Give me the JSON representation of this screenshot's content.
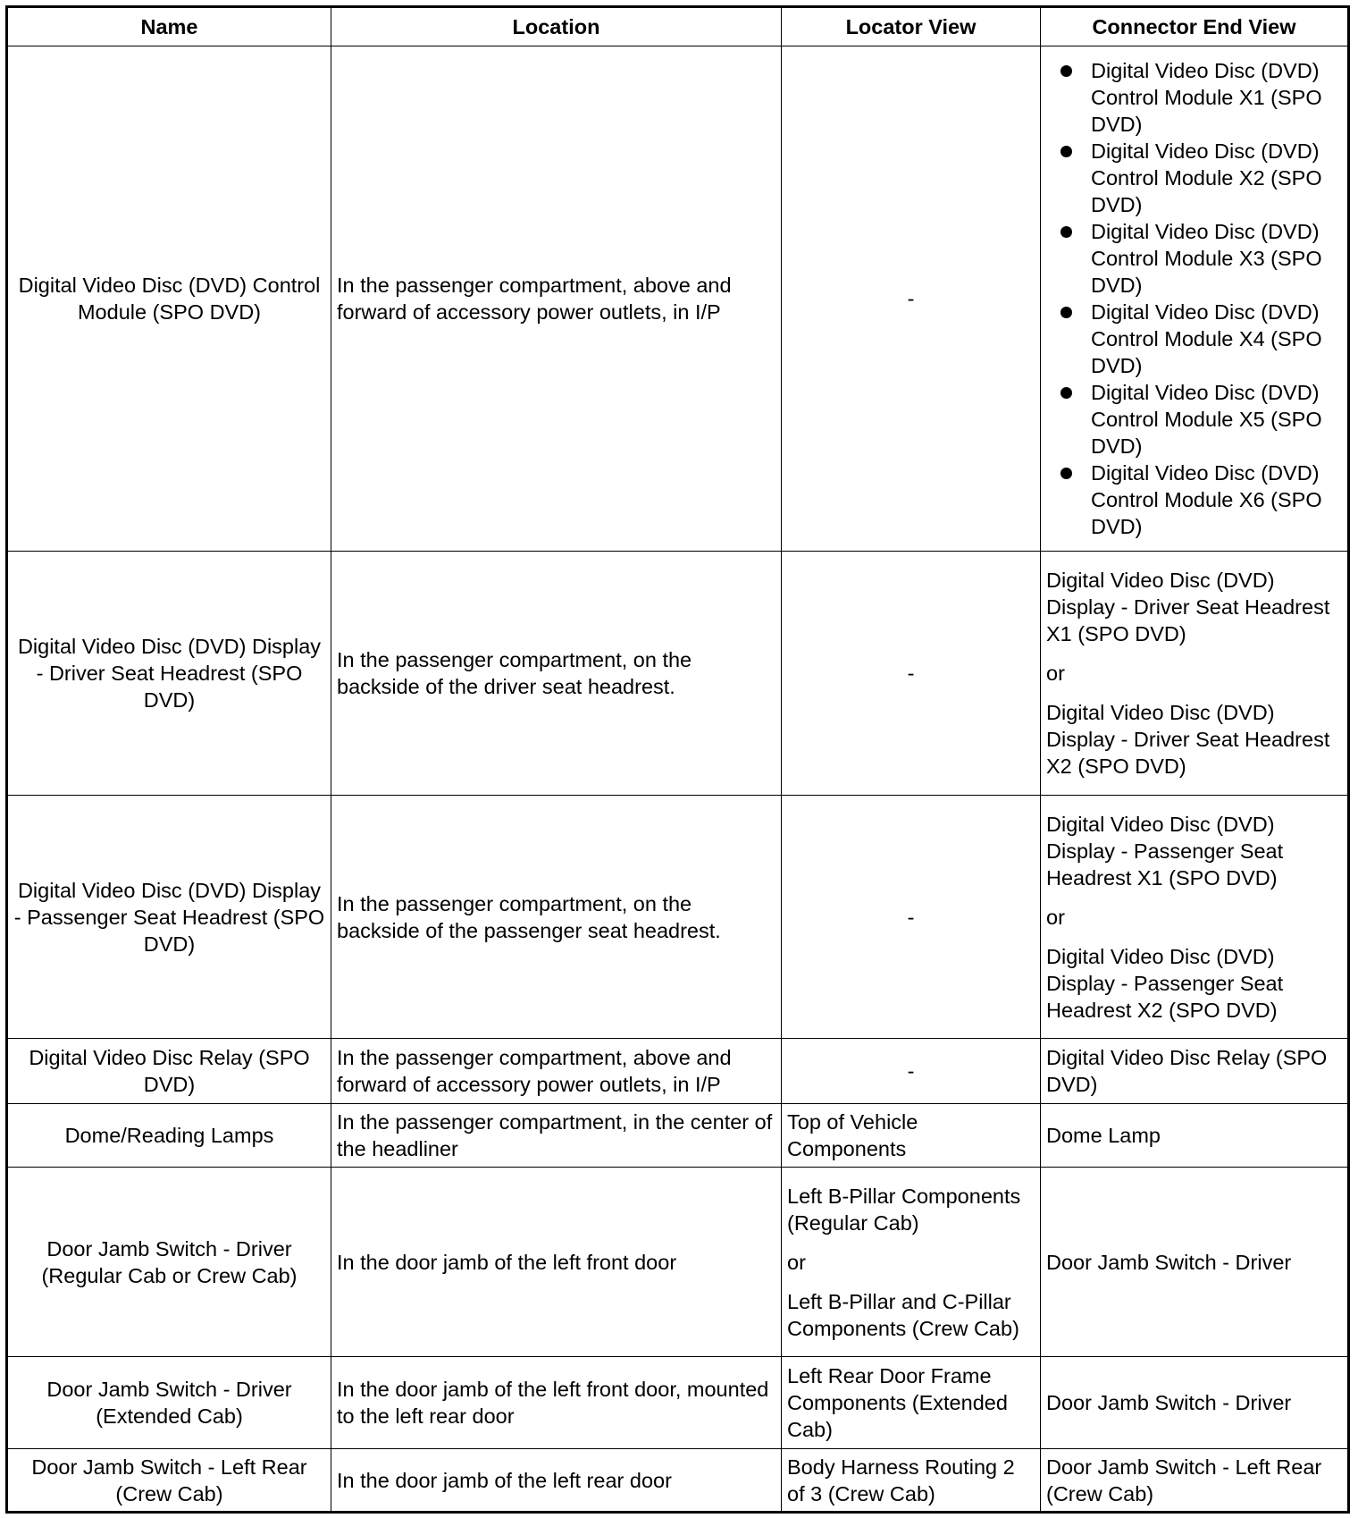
{
  "headers": [
    "Name",
    "Location",
    "Locator View",
    "Connector End View"
  ],
  "rows": [
    {
      "name": "Digital Video Disc (DVD) Control Module (SPO DVD)",
      "location": "In the passenger compartment, above and forward of accessory power outlets, in I/P",
      "locator": "-",
      "connector_list": [
        "Digital Video Disc (DVD) Control Module X1 (SPO DVD)",
        "Digital Video Disc (DVD) Control Module X2 (SPO DVD)",
        "Digital Video Disc (DVD) Control Module X3 (SPO DVD)",
        "Digital Video Disc (DVD) Control Module X4 (SPO DVD)",
        "Digital Video Disc (DVD) Control Module X5 (SPO DVD)",
        "Digital Video Disc (DVD) Control Module X6 (SPO DVD)"
      ]
    },
    {
      "name": "Digital Video Disc (DVD) Display - Driver Seat Headrest (SPO DVD)",
      "location": "In the passenger compartment, on the backside of the driver seat headrest.",
      "locator": "-",
      "connector_a": "Digital Video Disc (DVD) Display - Driver Seat Headrest X1 (SPO DVD)",
      "or": "or",
      "connector_b": "Digital Video Disc (DVD) Display - Driver Seat Headrest X2 (SPO DVD)"
    },
    {
      "name": "Digital Video Disc (DVD) Display - Passenger Seat Headrest (SPO DVD)",
      "location": "In the passenger compartment, on the backside of the passenger seat headrest.",
      "locator": "-",
      "connector_a": "Digital Video Disc (DVD) Display - Passenger Seat Headrest X1 (SPO DVD)",
      "or": "or",
      "connector_b": "Digital Video Disc (DVD) Display - Passenger Seat Headrest X2 (SPO DVD)"
    },
    {
      "name": "Digital Video Disc Relay (SPO DVD)",
      "location": "In the passenger compartment, above and forward of accessory power outlets, in I/P",
      "locator": "-",
      "connector": "Digital Video Disc Relay (SPO DVD)"
    },
    {
      "name": "Dome/Reading Lamps",
      "location": "In the passenger compartment, in the center of the headliner",
      "locator": "Top of Vehicle Components",
      "connector": "Dome Lamp"
    },
    {
      "name": "Door Jamb Switch - Driver (Regular Cab or Crew Cab)",
      "location": "In the door jamb of the left front door",
      "locator_a": "Left B-Pillar Components (Regular Cab)",
      "or": "or",
      "locator_b": "Left B-Pillar and C-Pillar Components (Crew Cab)",
      "connector": "Door Jamb Switch - Driver"
    },
    {
      "name": "Door Jamb Switch - Driver (Extended Cab)",
      "location": "In the door jamb of the left front door, mounted to the left rear door",
      "locator": "Left Rear Door Frame Components (Extended Cab)",
      "connector": "Door Jamb Switch - Driver"
    },
    {
      "name": "Door Jamb Switch - Left Rear (Crew Cab)",
      "location": "In the door jamb of the left rear door",
      "locator": "Body Harness Routing 2 of 3 (Crew Cab)",
      "connector": "Door Jamb Switch - Left Rear (Crew Cab)"
    }
  ]
}
